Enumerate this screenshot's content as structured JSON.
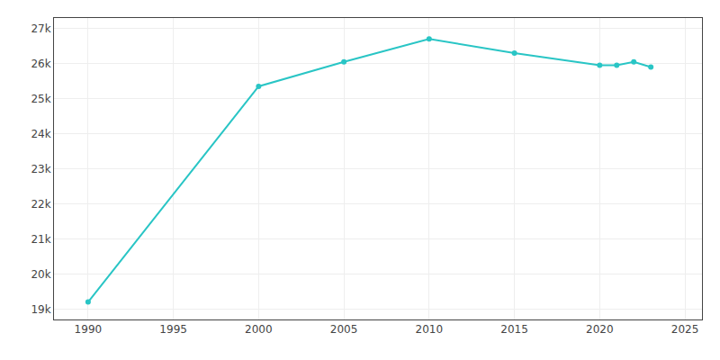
{
  "chart_data": {
    "type": "line",
    "x": [
      1990,
      2000,
      2005,
      2010,
      2015,
      2020,
      2021,
      2022,
      2023
    ],
    "values": [
      19200,
      25350,
      26050,
      26700,
      26300,
      25950,
      25950,
      26050,
      25900
    ],
    "color": "#29c5c5",
    "marker": "circle",
    "xlim": [
      1988,
      2026
    ],
    "xticks": [
      1990,
      1995,
      2000,
      2005,
      2010,
      2015,
      2020,
      2025
    ],
    "ylim": [
      18700,
      27300
    ],
    "yticks": [
      {
        "value": 19000,
        "label": "19k"
      },
      {
        "value": 20000,
        "label": "20k"
      },
      {
        "value": 21000,
        "label": "21k"
      },
      {
        "value": 22000,
        "label": "22k"
      },
      {
        "value": 23000,
        "label": "23k"
      },
      {
        "value": 24000,
        "label": "24k"
      },
      {
        "value": 25000,
        "label": "25k"
      },
      {
        "value": 26000,
        "label": "26k"
      },
      {
        "value": 27000,
        "label": "27k"
      }
    ],
    "grid": true
  }
}
